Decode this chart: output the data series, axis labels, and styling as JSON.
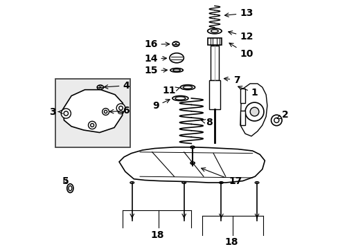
{
  "background_color": "#ffffff",
  "line_color": "#000000",
  "label_color": "#000000",
  "font_size": 10
}
